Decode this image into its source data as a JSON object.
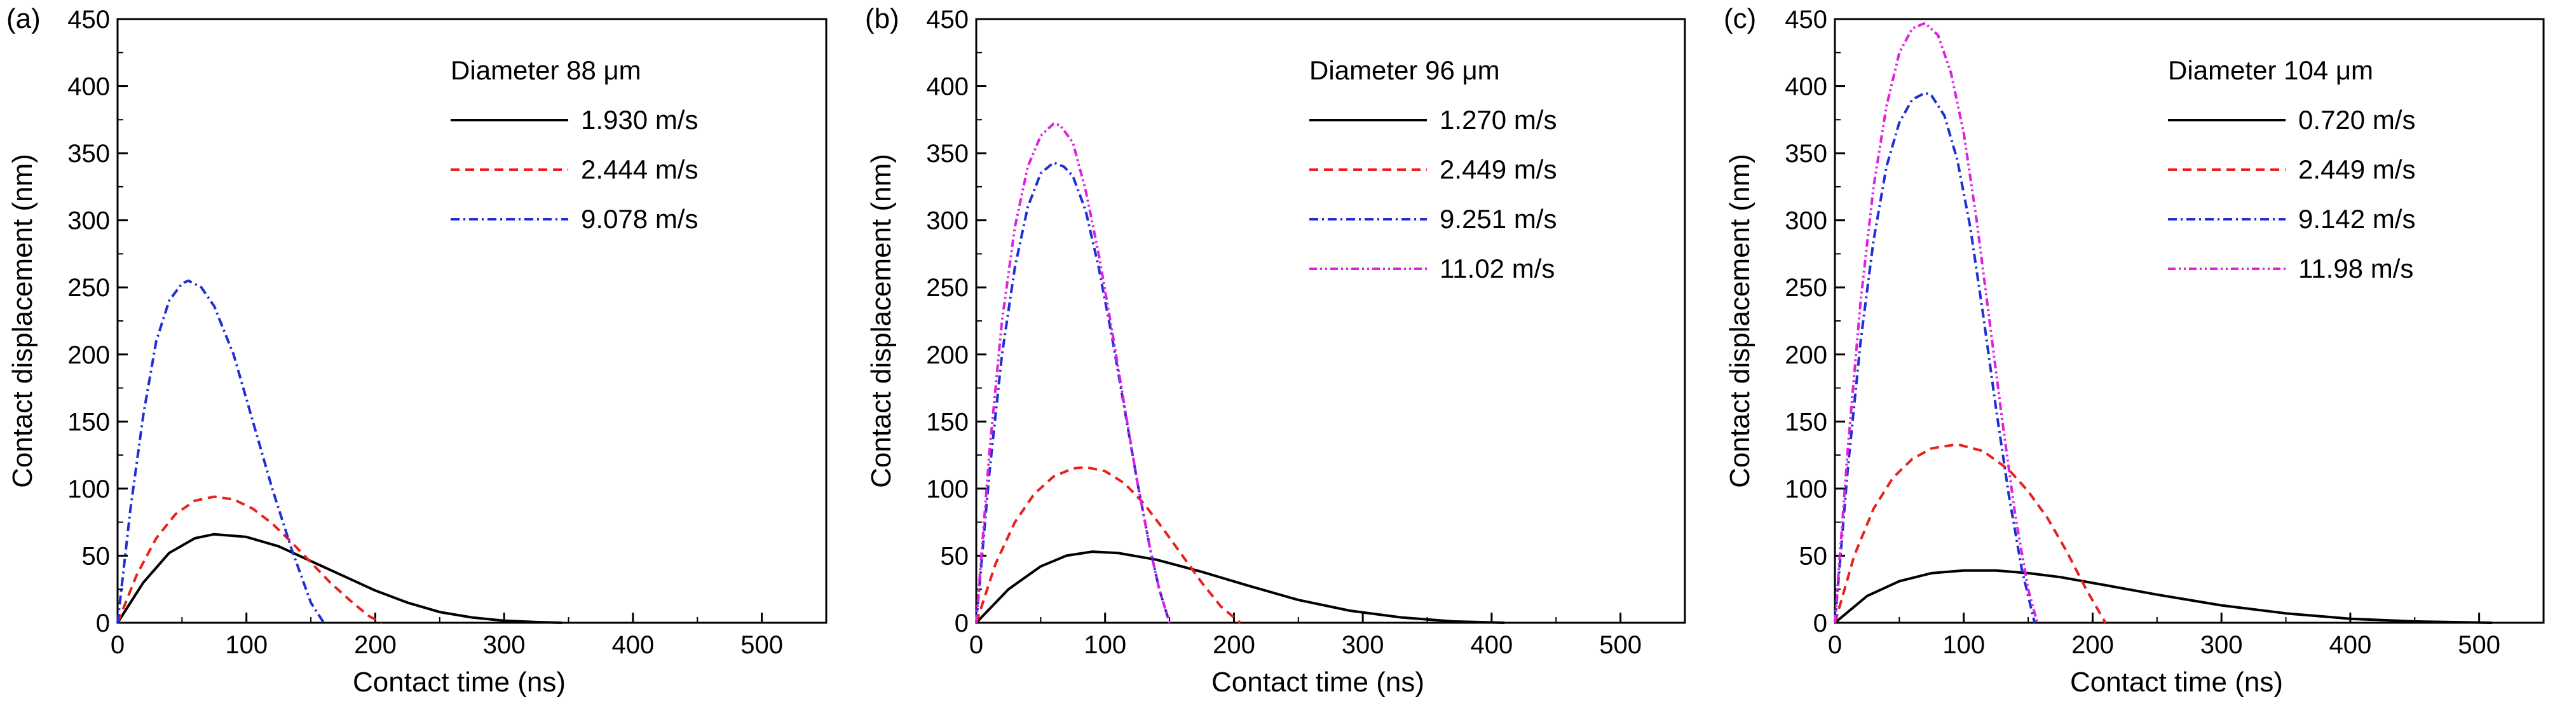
{
  "chart_data": [
    {
      "type": "line",
      "panel_label": "(a)",
      "xlabel": "Contact time (ns)",
      "ylabel": "Contact displacement (nm)",
      "xlim": [
        0,
        550
      ],
      "ylim": [
        0,
        450
      ],
      "xticks": [
        0,
        100,
        200,
        300,
        400,
        500
      ],
      "yticks": [
        0,
        50,
        100,
        150,
        200,
        250,
        300,
        350,
        400,
        450
      ],
      "grid": false,
      "legend": {
        "title": "Diameter 88 μm",
        "placement": "top-right"
      },
      "series": [
        {
          "name": "1.930 m/s",
          "color": "#000000",
          "dash": "solid",
          "x": [
            0,
            20,
            40,
            60,
            75,
            100,
            125,
            150,
            175,
            200,
            225,
            250,
            275,
            300,
            325,
            345
          ],
          "y": [
            0,
            30,
            52,
            63,
            66,
            64,
            57,
            46,
            35,
            24,
            15,
            8,
            4,
            1.5,
            0.5,
            0
          ]
        },
        {
          "name": "2.444 m/s",
          "color": "#e8211c",
          "dash": "dash",
          "x": [
            0,
            15,
            30,
            45,
            60,
            75,
            90,
            105,
            120,
            135,
            150,
            165,
            180,
            195,
            205
          ],
          "y": [
            0,
            36,
            63,
            81,
            91,
            94,
            92,
            85,
            74,
            60,
            45,
            30,
            17,
            5,
            0
          ]
        },
        {
          "name": "9.078 m/s",
          "color": "#1f2fd6",
          "dash": "dashdot",
          "x": [
            0,
            10,
            20,
            30,
            40,
            50,
            55,
            65,
            75,
            90,
            105,
            120,
            135,
            150,
            160
          ],
          "y": [
            0,
            85,
            155,
            210,
            240,
            253,
            255,
            250,
            236,
            200,
            150,
            100,
            55,
            15,
            0
          ]
        }
      ]
    },
    {
      "type": "line",
      "panel_label": "(b)",
      "xlabel": "Contact time (ns)",
      "ylabel": "Contact displacement (nm)",
      "xlim": [
        0,
        550
      ],
      "ylim": [
        0,
        450
      ],
      "xticks": [
        0,
        100,
        200,
        300,
        400,
        500
      ],
      "yticks": [
        0,
        50,
        100,
        150,
        200,
        250,
        300,
        350,
        400,
        450
      ],
      "grid": false,
      "legend": {
        "title": "Diameter 96 μm",
        "placement": "top-right"
      },
      "series": [
        {
          "name": "1.270 m/s",
          "color": "#000000",
          "dash": "solid",
          "x": [
            0,
            25,
            50,
            70,
            90,
            110,
            140,
            175,
            210,
            250,
            290,
            330,
            370,
            410
          ],
          "y": [
            0,
            25,
            42,
            50,
            53,
            52,
            47,
            38,
            28,
            17,
            9,
            4,
            1,
            0
          ]
        },
        {
          "name": "2.449 m/s",
          "color": "#e8211c",
          "dash": "dash",
          "x": [
            0,
            15,
            30,
            45,
            60,
            75,
            85,
            100,
            115,
            130,
            145,
            160,
            175,
            190,
            205
          ],
          "y": [
            0,
            44,
            75,
            96,
            109,
            115,
            116,
            113,
            104,
            89,
            70,
            50,
            30,
            12,
            0
          ]
        },
        {
          "name": "9.251 m/s",
          "color": "#1f2fd6",
          "dash": "dashdot",
          "x": [
            0,
            10,
            20,
            30,
            40,
            50,
            60,
            68,
            75,
            85,
            95,
            105,
            115,
            125,
            135,
            142,
            150
          ],
          "y": [
            0,
            110,
            200,
            265,
            310,
            335,
            343,
            340,
            333,
            307,
            265,
            215,
            160,
            105,
            55,
            25,
            0
          ]
        },
        {
          "name": "11.02 m/s",
          "color": "#e020e0",
          "dash": "dashdotdot",
          "x": [
            0,
            10,
            20,
            30,
            40,
            50,
            60,
            65,
            75,
            85,
            95,
            105,
            115,
            125,
            135,
            142,
            150
          ],
          "y": [
            0,
            125,
            225,
            295,
            340,
            363,
            372,
            371,
            358,
            322,
            275,
            220,
            162,
            105,
            55,
            25,
            0
          ]
        }
      ]
    },
    {
      "type": "line",
      "panel_label": "(c)",
      "xlabel": "Contact time (ns)",
      "ylabel": "Contact displacement (nm)",
      "xlim": [
        0,
        550
      ],
      "ylim": [
        0,
        450
      ],
      "xticks": [
        0,
        100,
        200,
        300,
        400,
        500
      ],
      "yticks": [
        0,
        50,
        100,
        150,
        200,
        250,
        300,
        350,
        400,
        450
      ],
      "grid": false,
      "legend": {
        "title": "Diameter 104 μm",
        "placement": "top-right"
      },
      "series": [
        {
          "name": "0.720 m/s",
          "color": "#000000",
          "dash": "solid",
          "x": [
            0,
            25,
            50,
            75,
            100,
            125,
            150,
            175,
            210,
            250,
            300,
            350,
            400,
            450,
            510
          ],
          "y": [
            0,
            20,
            31,
            37,
            39,
            39,
            37,
            34,
            28,
            21,
            13,
            7,
            3,
            1,
            0
          ]
        },
        {
          "name": "2.449 m/s",
          "color": "#e8211c",
          "dash": "dash",
          "x": [
            0,
            15,
            30,
            45,
            60,
            75,
            95,
            115,
            135,
            150,
            165,
            180,
            195,
            210
          ],
          "y": [
            0,
            50,
            85,
            108,
            122,
            130,
            133,
            128,
            114,
            98,
            78,
            53,
            25,
            0
          ]
        },
        {
          "name": "9.142 m/s",
          "color": "#1f2fd6",
          "dash": "dashdot",
          "x": [
            0,
            10,
            20,
            30,
            40,
            50,
            60,
            70,
            75,
            85,
            95,
            105,
            115,
            125,
            135,
            145,
            155
          ],
          "y": [
            0,
            115,
            210,
            285,
            340,
            373,
            390,
            395,
            393,
            378,
            345,
            295,
            230,
            160,
            95,
            40,
            0
          ]
        },
        {
          "name": "11.98 m/s",
          "color": "#e020e0",
          "dash": "dashdotdot",
          "x": [
            0,
            10,
            20,
            30,
            40,
            50,
            60,
            70,
            80,
            90,
            100,
            110,
            120,
            130,
            140,
            150,
            157
          ],
          "y": [
            0,
            130,
            240,
            325,
            385,
            425,
            443,
            447,
            438,
            410,
            365,
            300,
            225,
            150,
            80,
            25,
            0
          ]
        }
      ]
    }
  ]
}
